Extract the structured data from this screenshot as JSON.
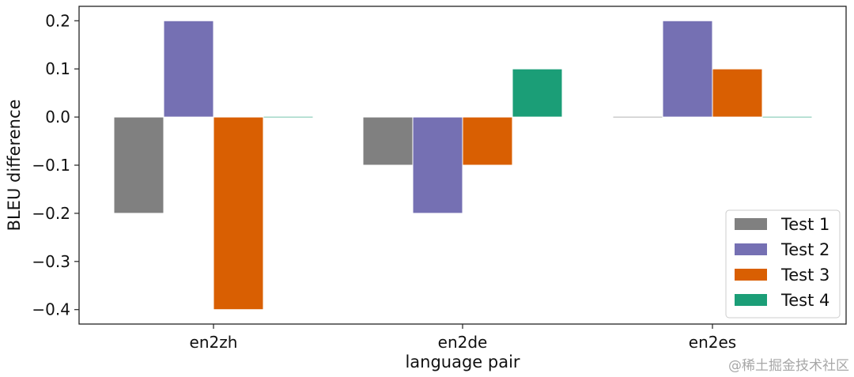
{
  "chart_data": {
    "type": "bar",
    "categories": [
      "en2zh",
      "en2de",
      "en2es"
    ],
    "series": [
      {
        "name": "Test 1",
        "color": "#808080",
        "values": [
          -0.2,
          -0.1,
          0.0
        ]
      },
      {
        "name": "Test 2",
        "color": "#7570b3",
        "values": [
          0.2,
          -0.2,
          0.2
        ]
      },
      {
        "name": "Test 3",
        "color": "#d95f02",
        "values": [
          -0.4,
          -0.1,
          0.1
        ]
      },
      {
        "name": "Test 4",
        "color": "#1b9e77",
        "values": [
          0.0,
          0.1,
          0.0
        ]
      }
    ],
    "xlabel": "language pair",
    "ylabel": "BLEU difference",
    "ylim": [
      -0.43,
      0.23
    ],
    "yticks": [
      0.2,
      0.1,
      0.0,
      -0.1,
      -0.2,
      -0.3,
      -0.4
    ],
    "ytick_labels": [
      "0.2",
      "0.1",
      "0.0",
      "−0.1",
      "−0.2",
      "−0.3",
      "−0.4"
    ],
    "grid": false,
    "legend_position": "lower right"
  },
  "watermark": "@稀土掘金技术社区"
}
